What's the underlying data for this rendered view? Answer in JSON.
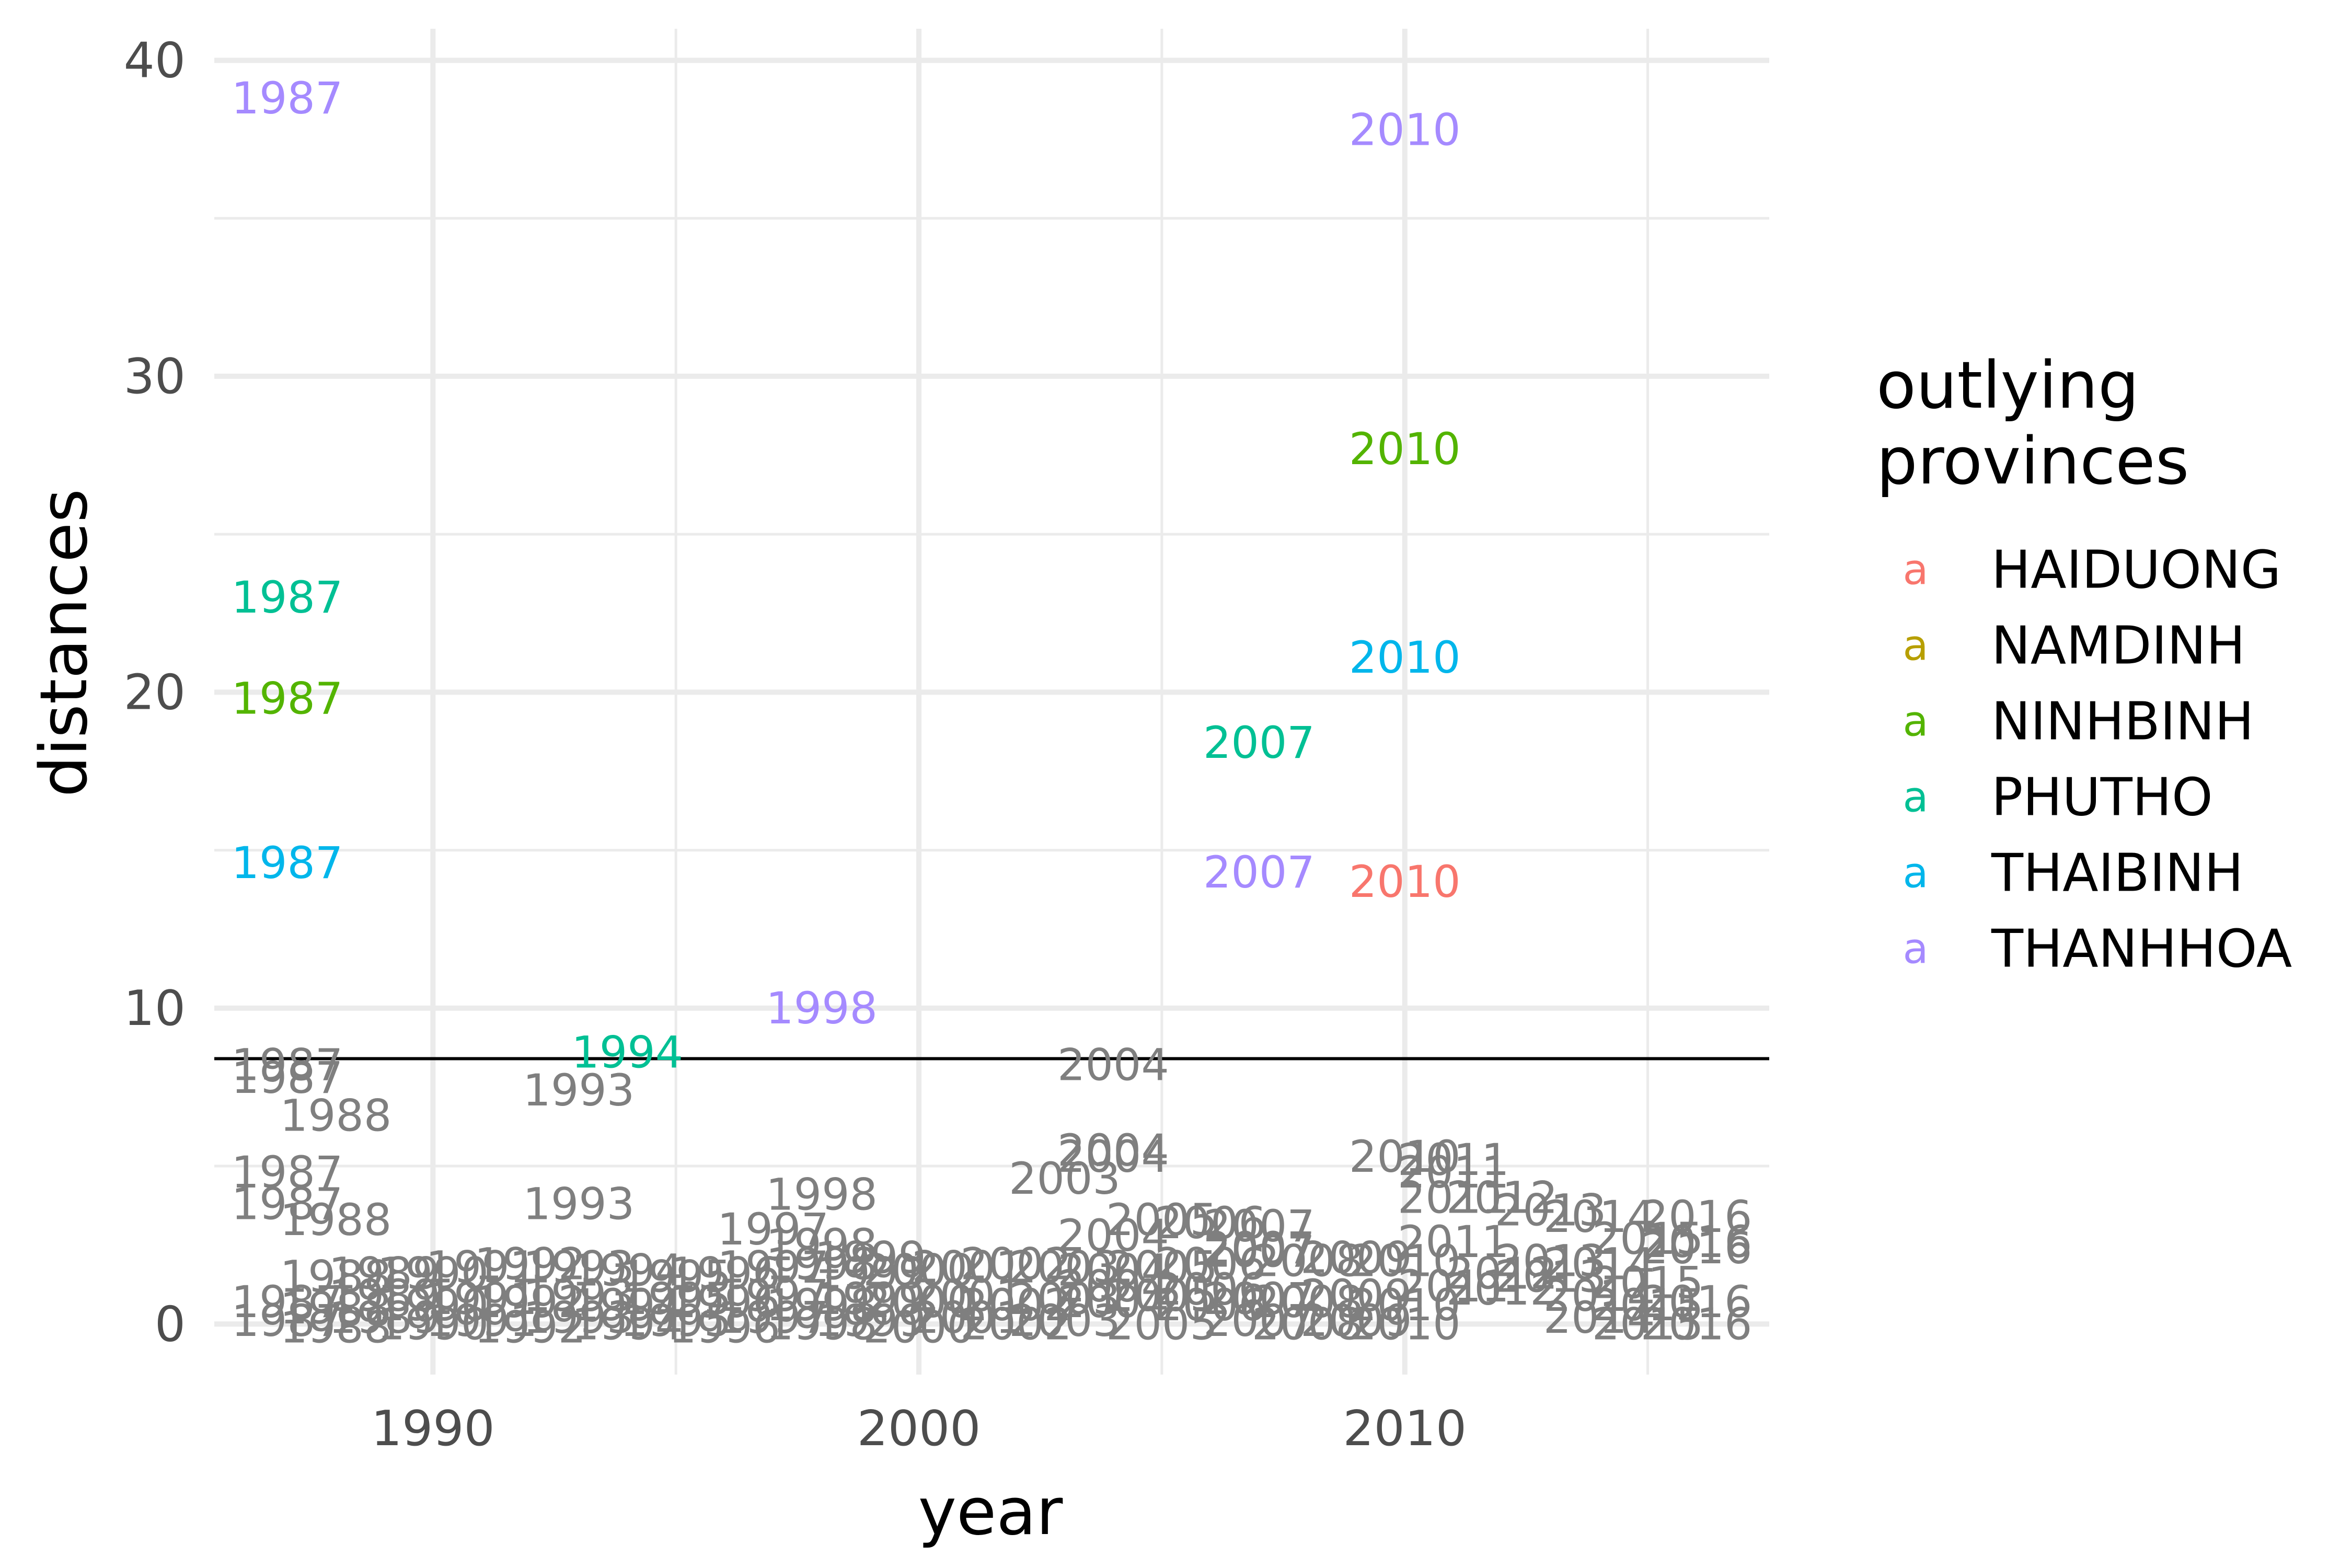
{
  "chart_data": {
    "type": "scatter",
    "geom": "text",
    "xlabel": "year",
    "ylabel": "distances",
    "xlim": [
      1985.5,
      2017.5
    ],
    "ylim": [
      -1.6,
      41
    ],
    "xticks": [
      1990,
      2000,
      2010
    ],
    "yticks": [
      0,
      10,
      20,
      30,
      40
    ],
    "grid": true,
    "threshold": 8.4,
    "legend": {
      "title_lines": [
        "outlying",
        "provinces"
      ],
      "position": "right",
      "key_glyph": "a"
    },
    "series": [
      {
        "name": "HAIDUONG",
        "color": "#F8766D",
        "points": [
          {
            "x": 2010,
            "y": 14,
            "label": "2010"
          }
        ]
      },
      {
        "name": "NAMDINH",
        "color": "#B79F00",
        "points": []
      },
      {
        "name": "NINHBINH",
        "color": "#53B400",
        "points": [
          {
            "x": 1987,
            "y": 19.8,
            "label": "1987"
          },
          {
            "x": 2010,
            "y": 27.7,
            "label": "2010"
          }
        ]
      },
      {
        "name": "PHUTHO",
        "color": "#00C094",
        "points": [
          {
            "x": 1987,
            "y": 23,
            "label": "1987"
          },
          {
            "x": 1994,
            "y": 8.6,
            "label": "1994"
          },
          {
            "x": 2007,
            "y": 18.4,
            "label": "2007"
          }
        ]
      },
      {
        "name": "THAIBINH",
        "color": "#00B6EB",
        "points": [
          {
            "x": 1987,
            "y": 14.6,
            "label": "1987"
          },
          {
            "x": 2010,
            "y": 21.1,
            "label": "2010"
          }
        ]
      },
      {
        "name": "THANHHOA",
        "color": "#A58AFF",
        "points": [
          {
            "x": 1987,
            "y": 38.8,
            "label": "1987"
          },
          {
            "x": 2010,
            "y": 37.8,
            "label": "2010"
          },
          {
            "x": 1998,
            "y": 10,
            "label": "1998"
          },
          {
            "x": 2007,
            "y": 14.3,
            "label": "2007"
          }
        ]
      }
    ],
    "non_outlying": {
      "color": "#7F7F7F",
      "points": [
        {
          "x": 1987,
          "y": 8.2,
          "label": "1987"
        },
        {
          "x": 1987,
          "y": 7.8,
          "label": "1987"
        },
        {
          "x": 1988,
          "y": 6.6,
          "label": "1988"
        },
        {
          "x": 1993,
          "y": 7.4,
          "label": "1993"
        },
        {
          "x": 2004,
          "y": 8.2,
          "label": "2004"
        },
        {
          "x": 1987,
          "y": 4.8,
          "label": "1987"
        },
        {
          "x": 1987,
          "y": 3.8,
          "label": "1987"
        },
        {
          "x": 1988,
          "y": 3.3,
          "label": "1988"
        },
        {
          "x": 1993,
          "y": 3.8,
          "label": "1993"
        },
        {
          "x": 1998,
          "y": 4.1,
          "label": "1998"
        },
        {
          "x": 1997,
          "y": 3.0,
          "label": "1997"
        },
        {
          "x": 1998,
          "y": 2.5,
          "label": "1998"
        },
        {
          "x": 1999,
          "y": 2.1,
          "label": "1999"
        },
        {
          "x": 2003,
          "y": 4.6,
          "label": "2003"
        },
        {
          "x": 2004,
          "y": 5.5,
          "label": "2004"
        },
        {
          "x": 2004,
          "y": 5.3,
          "label": "2004"
        },
        {
          "x": 2004,
          "y": 2.8,
          "label": "2004"
        },
        {
          "x": 2005,
          "y": 3.3,
          "label": "2005"
        },
        {
          "x": 2006,
          "y": 3.2,
          "label": "2006"
        },
        {
          "x": 2007,
          "y": 3.1,
          "label": "2007"
        },
        {
          "x": 2007,
          "y": 2.4,
          "label": "2007"
        },
        {
          "x": 2010,
          "y": 5.3,
          "label": "2010"
        },
        {
          "x": 2011,
          "y": 5.2,
          "label": "2011"
        },
        {
          "x": 2011,
          "y": 4.8,
          "label": "2011"
        },
        {
          "x": 2011,
          "y": 4.0,
          "label": "2011"
        },
        {
          "x": 2012,
          "y": 4.0,
          "label": "2012"
        },
        {
          "x": 2011,
          "y": 2.6,
          "label": "2011"
        },
        {
          "x": 2013,
          "y": 3.6,
          "label": "2013"
        },
        {
          "x": 2014,
          "y": 3.4,
          "label": "2014"
        },
        {
          "x": 2016,
          "y": 3.4,
          "label": "2016"
        },
        {
          "x": 2016,
          "y": 2.6,
          "label": "2016"
        },
        {
          "x": 2015,
          "y": 2.7,
          "label": "2015"
        },
        {
          "x": 2016,
          "y": 2.4,
          "label": "2016"
        },
        {
          "x": 2015,
          "y": 1.3,
          "label": "2015"
        },
        {
          "x": 2014,
          "y": 1.9,
          "label": "2014"
        },
        {
          "x": 2013,
          "y": 2.0,
          "label": "2013"
        },
        {
          "x": 2012,
          "y": 1.1,
          "label": "2012"
        },
        {
          "x": 2010,
          "y": 2.0,
          "label": "2010"
        },
        {
          "x": 2009,
          "y": 2.1,
          "label": "2009"
        },
        {
          "x": 2008,
          "y": 2.0,
          "label": "2008"
        },
        {
          "x": 2007,
          "y": 2.3,
          "label": "2007"
        },
        {
          "x": 2006,
          "y": 1.9,
          "label": "2006"
        },
        {
          "x": 2005,
          "y": 1.8,
          "label": "2005"
        },
        {
          "x": 2004,
          "y": 1.7,
          "label": "2004"
        },
        {
          "x": 2003,
          "y": 1.8,
          "label": "2003"
        },
        {
          "x": 2002,
          "y": 1.9,
          "label": "2002"
        },
        {
          "x": 2001,
          "y": 1.8,
          "label": "2001"
        },
        {
          "x": 2000,
          "y": 1.7,
          "label": "2000"
        },
        {
          "x": 1999,
          "y": 1.6,
          "label": "1999"
        },
        {
          "x": 1998,
          "y": 1.9,
          "label": "1998"
        },
        {
          "x": 1997,
          "y": 1.8,
          "label": "1997"
        },
        {
          "x": 1996,
          "y": 1.6,
          "label": "1996"
        },
        {
          "x": 1995,
          "y": 1.5,
          "label": "1995"
        },
        {
          "x": 1994,
          "y": 1.7,
          "label": "1994"
        },
        {
          "x": 1993,
          "y": 1.8,
          "label": "1993"
        },
        {
          "x": 1992,
          "y": 1.9,
          "label": "1992"
        },
        {
          "x": 1991,
          "y": 1.8,
          "label": "1991"
        },
        {
          "x": 1990,
          "y": 1.6,
          "label": "1990"
        },
        {
          "x": 1989,
          "y": 1.6,
          "label": "1989"
        },
        {
          "x": 1988,
          "y": 1.5,
          "label": "1988"
        },
        {
          "x": 1987,
          "y": 0.7,
          "label": "1987"
        },
        {
          "x": 1987,
          "y": 0.1,
          "label": "1987"
        },
        {
          "x": 1988,
          "y": 0.5,
          "label": "1988"
        },
        {
          "x": 1988,
          "y": -0.1,
          "label": "1988"
        },
        {
          "x": 1989,
          "y": 0.9,
          "label": "1989"
        },
        {
          "x": 1989,
          "y": 0.2,
          "label": "1989"
        },
        {
          "x": 1990,
          "y": 0.6,
          "label": "1990"
        },
        {
          "x": 1990,
          "y": 0.0,
          "label": "1990"
        },
        {
          "x": 1991,
          "y": 0.8,
          "label": "1991"
        },
        {
          "x": 1991,
          "y": 0.1,
          "label": "1991"
        },
        {
          "x": 1992,
          "y": 0.7,
          "label": "1992"
        },
        {
          "x": 1992,
          "y": -0.1,
          "label": "1992"
        },
        {
          "x": 1993,
          "y": 0.9,
          "label": "1993"
        },
        {
          "x": 1993,
          "y": 0.2,
          "label": "1993"
        },
        {
          "x": 1994,
          "y": 0.6,
          "label": "1994"
        },
        {
          "x": 1994,
          "y": 0.0,
          "label": "1994"
        },
        {
          "x": 1995,
          "y": 0.8,
          "label": "1995"
        },
        {
          "x": 1995,
          "y": 0.1,
          "label": "1995"
        },
        {
          "x": 1996,
          "y": 0.7,
          "label": "1996"
        },
        {
          "x": 1996,
          "y": -0.1,
          "label": "1996"
        },
        {
          "x": 1997,
          "y": 0.9,
          "label": "1997"
        },
        {
          "x": 1997,
          "y": 0.2,
          "label": "1997"
        },
        {
          "x": 1998,
          "y": 0.6,
          "label": "1998"
        },
        {
          "x": 1998,
          "y": 0.0,
          "label": "1998"
        },
        {
          "x": 1999,
          "y": 0.8,
          "label": "1999"
        },
        {
          "x": 1999,
          "y": 0.1,
          "label": "1999"
        },
        {
          "x": 2000,
          "y": 0.7,
          "label": "2000"
        },
        {
          "x": 2000,
          "y": -0.1,
          "label": "2000"
        },
        {
          "x": 2001,
          "y": 0.9,
          "label": "2001"
        },
        {
          "x": 2001,
          "y": 0.2,
          "label": "2001"
        },
        {
          "x": 2002,
          "y": 0.6,
          "label": "2002"
        },
        {
          "x": 2002,
          "y": 0.0,
          "label": "2002"
        },
        {
          "x": 2003,
          "y": 0.8,
          "label": "2003"
        },
        {
          "x": 2003,
          "y": 0.1,
          "label": "2003"
        },
        {
          "x": 2004,
          "y": 0.7,
          "label": "2004"
        },
        {
          "x": 2004,
          "y": 1.2,
          "label": "2004"
        },
        {
          "x": 2005,
          "y": 0.9,
          "label": "2005"
        },
        {
          "x": 2005,
          "y": 0.0,
          "label": "2005"
        },
        {
          "x": 2006,
          "y": 0.6,
          "label": "2006"
        },
        {
          "x": 2006,
          "y": 1.1,
          "label": "2006"
        },
        {
          "x": 2007,
          "y": 0.8,
          "label": "2007"
        },
        {
          "x": 2007,
          "y": 0.1,
          "label": "2007"
        },
        {
          "x": 2008,
          "y": 0.7,
          "label": "2008"
        },
        {
          "x": 2008,
          "y": 0.0,
          "label": "2008"
        },
        {
          "x": 2009,
          "y": 0.9,
          "label": "2009"
        },
        {
          "x": 2009,
          "y": 0.1,
          "label": "2009"
        },
        {
          "x": 2010,
          "y": 0.6,
          "label": "2010"
        },
        {
          "x": 2010,
          "y": 0.0,
          "label": "2010"
        },
        {
          "x": 2011,
          "y": 1.2,
          "label": "2011"
        },
        {
          "x": 2012,
          "y": 1.6,
          "label": "2012"
        },
        {
          "x": 2013,
          "y": 1.5,
          "label": "2013"
        },
        {
          "x": 2014,
          "y": 0.9,
          "label": "2014"
        },
        {
          "x": 2014,
          "y": 0.2,
          "label": "2014"
        },
        {
          "x": 2015,
          "y": 0.6,
          "label": "2015"
        },
        {
          "x": 2015,
          "y": 0.0,
          "label": "2015"
        },
        {
          "x": 2016,
          "y": 0.7,
          "label": "2016"
        },
        {
          "x": 2016,
          "y": 0.0,
          "label": "2016"
        }
      ]
    }
  }
}
